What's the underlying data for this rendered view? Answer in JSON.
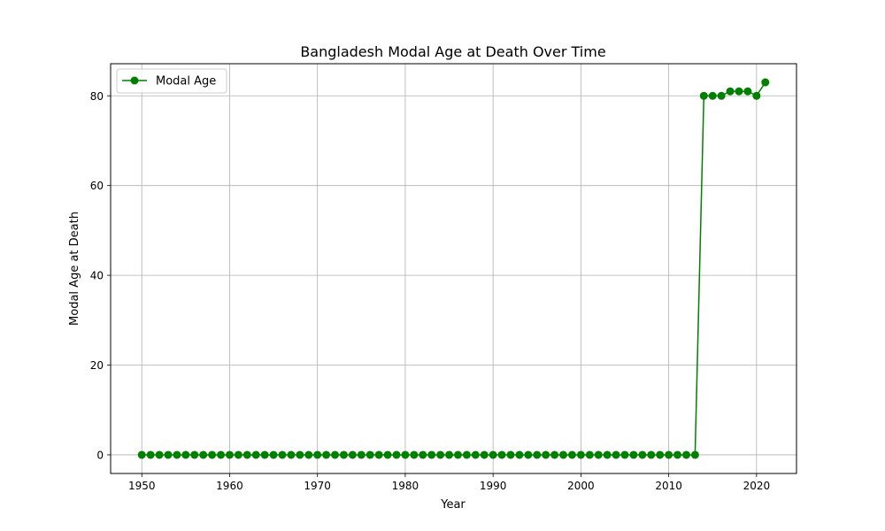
{
  "chart_data": {
    "type": "line",
    "title": "Bangladesh Modal Age at Death Over Time",
    "xlabel": "Year",
    "ylabel": "Modal Age at Death",
    "xlim": [
      1946.45,
      2024.55
    ],
    "ylim": [
      -4.15,
      87.15
    ],
    "xticks": [
      1950,
      1960,
      1970,
      1980,
      1990,
      2000,
      2010,
      2020
    ],
    "yticks": [
      0,
      20,
      40,
      60,
      80
    ],
    "grid": true,
    "legend_position": "upper-left",
    "series": [
      {
        "name": "Modal Age",
        "color": "#008000",
        "marker": "circle",
        "x": [
          1950,
          1951,
          1952,
          1953,
          1954,
          1955,
          1956,
          1957,
          1958,
          1959,
          1960,
          1961,
          1962,
          1963,
          1964,
          1965,
          1966,
          1967,
          1968,
          1969,
          1970,
          1971,
          1972,
          1973,
          1974,
          1975,
          1976,
          1977,
          1978,
          1979,
          1980,
          1981,
          1982,
          1983,
          1984,
          1985,
          1986,
          1987,
          1988,
          1989,
          1990,
          1991,
          1992,
          1993,
          1994,
          1995,
          1996,
          1997,
          1998,
          1999,
          2000,
          2001,
          2002,
          2003,
          2004,
          2005,
          2006,
          2007,
          2008,
          2009,
          2010,
          2011,
          2012,
          2013,
          2014,
          2015,
          2016,
          2017,
          2018,
          2019,
          2020,
          2021
        ],
        "y": [
          0,
          0,
          0,
          0,
          0,
          0,
          0,
          0,
          0,
          0,
          0,
          0,
          0,
          0,
          0,
          0,
          0,
          0,
          0,
          0,
          0,
          0,
          0,
          0,
          0,
          0,
          0,
          0,
          0,
          0,
          0,
          0,
          0,
          0,
          0,
          0,
          0,
          0,
          0,
          0,
          0,
          0,
          0,
          0,
          0,
          0,
          0,
          0,
          0,
          0,
          0,
          0,
          0,
          0,
          0,
          0,
          0,
          0,
          0,
          0,
          0,
          0,
          0,
          0,
          80,
          80,
          80,
          81,
          81,
          81,
          80,
          83
        ]
      }
    ]
  }
}
